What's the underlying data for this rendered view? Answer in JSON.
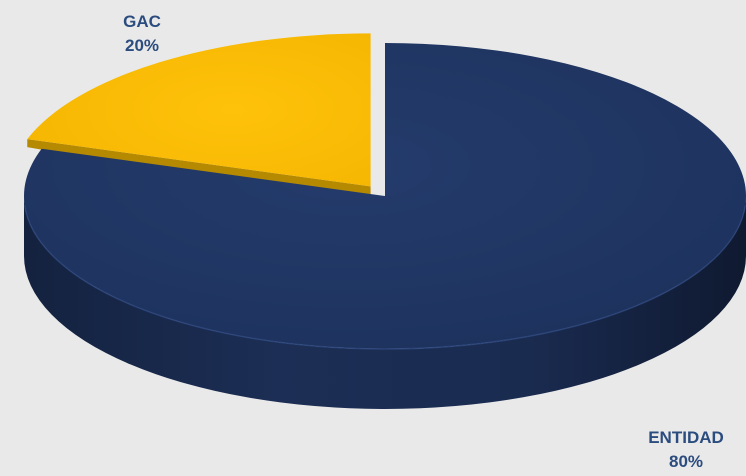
{
  "chart_data": {
    "type": "pie",
    "style": "3d",
    "categories": [
      "ENTIDAD",
      "GAC"
    ],
    "values": [
      80,
      20
    ],
    "labels": [
      {
        "category": "ENTIDAD",
        "value": "80%"
      },
      {
        "category": "GAC",
        "value": "20%"
      }
    ],
    "colors": [
      "#1f3461",
      "#f8bb00"
    ],
    "exploded": "GAC",
    "label_color": "#2b4c7e",
    "background": "#e9e9e9"
  }
}
